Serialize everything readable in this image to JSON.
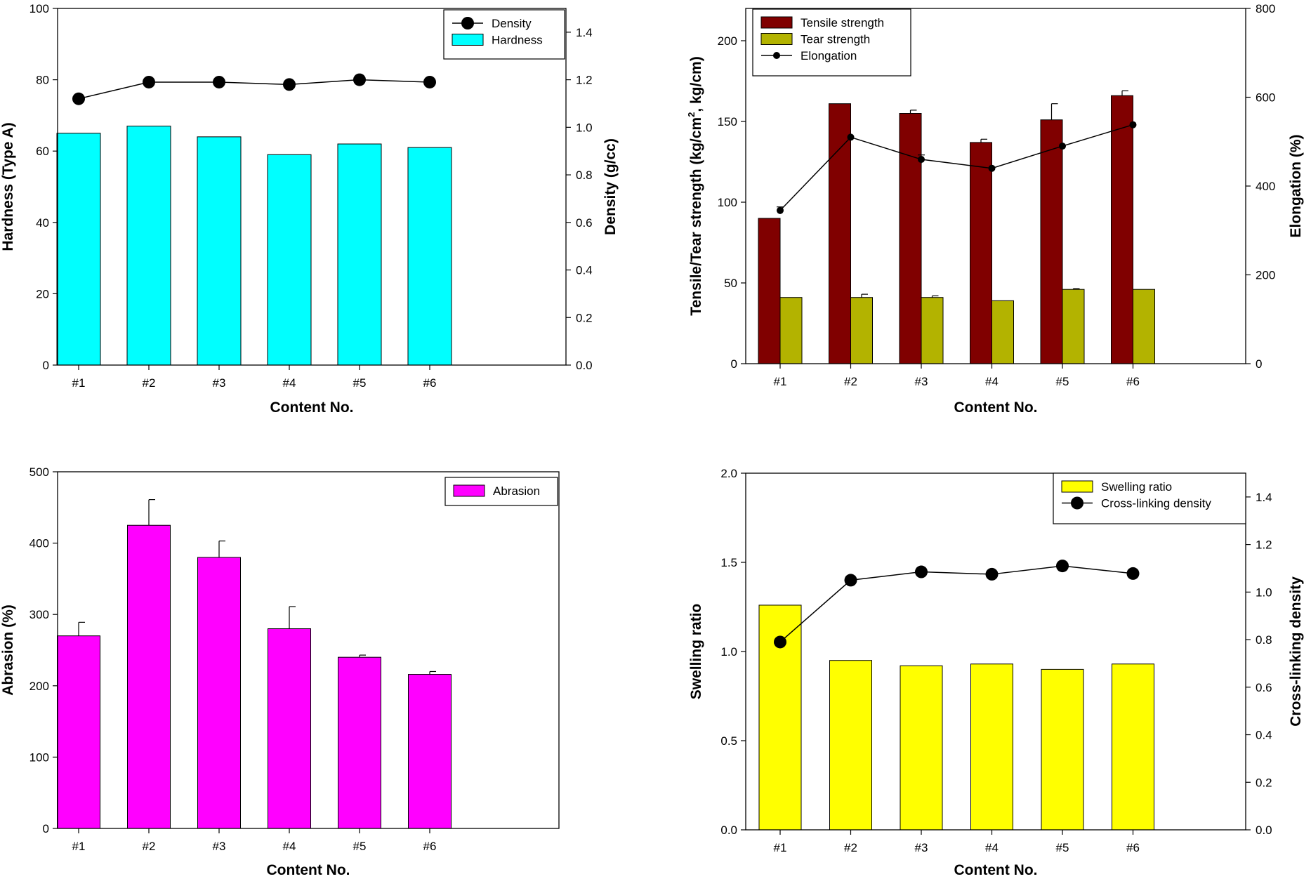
{
  "chart_data": [
    {
      "id": "hardness-density",
      "type": "bar",
      "categories": [
        "#1",
        "#2",
        "#3",
        "#4",
        "#5",
        "#6"
      ],
      "xlabel": "Content No.",
      "ylabel": "Hardness (Type A)",
      "y2label": "Density (g/cc)",
      "ylim": [
        0,
        100
      ],
      "yticks": [
        0,
        20,
        40,
        60,
        80,
        100
      ],
      "y2lim": [
        0,
        1.5
      ],
      "y2ticks": [
        "0.0",
        "0.2",
        "0.4",
        "0.6",
        "0.8",
        "1.0",
        "1.2",
        "1.4"
      ],
      "legend_position": "top-right",
      "series": [
        {
          "name": "Hardness",
          "kind": "bar",
          "axis": "left",
          "color": "#00ffff",
          "values": [
            65,
            67,
            64,
            59,
            62,
            61
          ]
        },
        {
          "name": "Density",
          "kind": "line",
          "axis": "right",
          "marker": "large-circle",
          "color": "#000000",
          "values": [
            1.12,
            1.19,
            1.19,
            1.18,
            1.2,
            1.19
          ]
        }
      ],
      "legend_order": [
        "Density",
        "Hardness"
      ]
    },
    {
      "id": "tensile-tear-elongation",
      "type": "bar",
      "categories": [
        "#1",
        "#2",
        "#3",
        "#4",
        "#5",
        "#6"
      ],
      "xlabel": "Content No.",
      "ylabel": "Tensile/Tear strength (kg/cm2, kg/cm)",
      "ylabel_parts": [
        "Tensile/Tear strength (kg/cm",
        "2",
        ", kg/cm)"
      ],
      "y2label": "Elongation (%)",
      "ylim": [
        0,
        220
      ],
      "yticks": [
        0,
        50,
        100,
        150,
        200
      ],
      "y2lim": [
        0,
        800
      ],
      "y2ticks": [
        0,
        200,
        400,
        600,
        800
      ],
      "legend_position": "top-left",
      "series": [
        {
          "name": "Tensile strength",
          "kind": "bar",
          "axis": "left",
          "color": "#800000",
          "values": [
            90,
            161,
            155,
            137,
            151,
            166
          ],
          "errors": [
            0,
            0,
            2,
            2,
            10,
            3
          ]
        },
        {
          "name": "Tear strength",
          "kind": "bar",
          "axis": "left",
          "color": "#b3b300",
          "values": [
            41,
            41,
            41,
            39,
            46,
            46
          ],
          "errors": [
            0,
            2,
            1,
            0,
            0.5,
            0
          ]
        },
        {
          "name": "Elongation",
          "kind": "line",
          "axis": "right",
          "marker": "small-dot",
          "color": "#000000",
          "values": [
            345,
            510,
            460,
            440,
            490,
            538
          ],
          "errors": [
            8,
            0,
            10,
            0,
            0,
            0
          ]
        }
      ],
      "legend_order": [
        "Tensile strength",
        "Tear strength",
        "Elongation"
      ]
    },
    {
      "id": "abrasion",
      "type": "bar",
      "categories": [
        "#1",
        "#2",
        "#3",
        "#4",
        "#5",
        "#6"
      ],
      "xlabel": "Content No.",
      "ylabel": "Abrasion (%)",
      "ylim": [
        0,
        500
      ],
      "yticks": [
        0,
        100,
        200,
        300,
        400,
        500
      ],
      "legend_position": "top-right",
      "series": [
        {
          "name": "Abrasion",
          "kind": "bar",
          "axis": "left",
          "color": "#ff00ff",
          "values": [
            270,
            425,
            380,
            280,
            240,
            216
          ],
          "errors": [
            19,
            36,
            23,
            31,
            3,
            4
          ]
        }
      ],
      "legend_order": [
        "Abrasion"
      ]
    },
    {
      "id": "swelling-crosslinking",
      "type": "bar",
      "categories": [
        "#1",
        "#2",
        "#3",
        "#4",
        "#5",
        "#6"
      ],
      "xlabel": "Content No.",
      "ylabel": "Swelling ratio",
      "y2label": "Cross-linking density",
      "ylim": [
        0,
        2.0
      ],
      "yticks": [
        "0.0",
        "0.5",
        "1.0",
        "1.5",
        "2.0"
      ],
      "y2lim": [
        0,
        1.5
      ],
      "y2ticks": [
        "0.0",
        "0.2",
        "0.4",
        "0.6",
        "0.8",
        "1.0",
        "1.2",
        "1.4"
      ],
      "legend_position": "top-right",
      "series": [
        {
          "name": "Swelling ratio",
          "kind": "bar",
          "axis": "left",
          "color": "#ffff00",
          "values": [
            1.26,
            0.95,
            0.92,
            0.93,
            0.9,
            0.93
          ]
        },
        {
          "name": "Cross-linking density",
          "kind": "line",
          "axis": "right",
          "marker": "large-circle",
          "color": "#000000",
          "values": [
            0.79,
            1.05,
            1.085,
            1.075,
            1.11,
            1.078
          ]
        }
      ],
      "legend_order": [
        "Swelling ratio",
        "Cross-linking density"
      ]
    }
  ]
}
